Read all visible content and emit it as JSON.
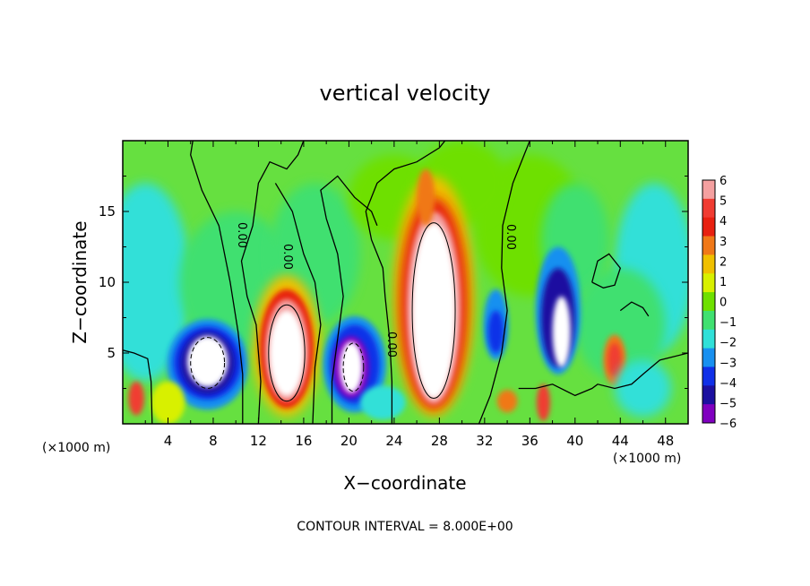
{
  "chart_data": {
    "type": "heatmap",
    "title": "vertical velocity",
    "xlabel": "X−coordinate",
    "ylabel": "Z−coordinate",
    "x_unit_label": "(×1000 m)",
    "x_unit_label_right": "(×1000 m)",
    "xlim": [
      0,
      50
    ],
    "ylim": [
      0,
      20
    ],
    "x_ticks": [
      4,
      8,
      12,
      16,
      20,
      24,
      28,
      32,
      36,
      40,
      44,
      48
    ],
    "y_ticks": [
      5,
      10,
      15
    ],
    "colorbar": {
      "range": [
        -6,
        6
      ],
      "labels": [
        "6",
        "5",
        "4",
        "3",
        "2",
        "1",
        "0",
        "−1",
        "−2",
        "−3",
        "−4",
        "−5",
        "−6"
      ],
      "colors_top_to_bottom": [
        "#f4a0a0",
        "#f03c32",
        "#e82010",
        "#f07818",
        "#f0c000",
        "#d8f000",
        "#6ee000",
        "#40e070",
        "#30e0d8",
        "#1890f0",
        "#1030e8",
        "#1c10a0",
        "#8000c0"
      ]
    },
    "contour_labels": [
      "0.00",
      "0.00",
      "0.00",
      "0.00"
    ],
    "contour_interval_label": "CONTOUR INTERVAL =",
    "contour_interval_value": "8.000E+00",
    "features": [
      {
        "kind": "updraft_core",
        "x": 14.5,
        "z": 5.0,
        "peak": 8
      },
      {
        "kind": "updraft_core",
        "x": 27.5,
        "z": 8.5,
        "peak": 9
      },
      {
        "kind": "downdraft_core",
        "x": 7.5,
        "z": 4.5,
        "peak": -8
      },
      {
        "kind": "downdraft_core",
        "x": 20.5,
        "z": 4.0,
        "peak": -8
      },
      {
        "kind": "downdraft_core",
        "x": 38.5,
        "z": 7.5,
        "peak": -6
      }
    ]
  }
}
